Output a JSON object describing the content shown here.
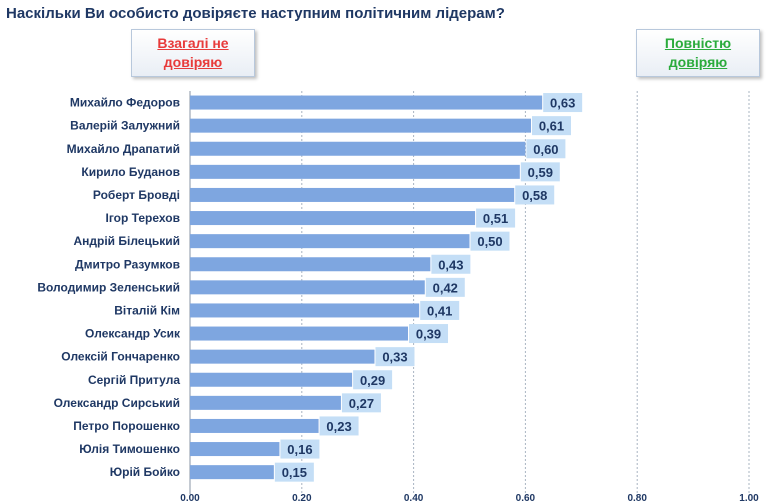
{
  "title": "Наскільки Ви особисто довіряєте наступним політичним лідерам?",
  "legend": {
    "left_label": "Взагалі не довіряю",
    "right_label": "Повністю довіряю",
    "left_color": "#e83b3b",
    "right_color": "#2bab3c"
  },
  "chart_data": {
    "type": "bar",
    "orientation": "horizontal",
    "title": "Наскільки Ви особисто довіряєте наступним політичним лідерам?",
    "categories": [
      "Михайло Федоров",
      "Валерій Залужний",
      "Михайло Драпатий",
      "Кирило Буданов",
      "Роберт Бровді",
      "Ігор Терехов",
      "Андрій Білецький",
      "Дмитро Разумков",
      "Володимир Зеленський",
      "Віталій Кім",
      "Олександр Усик",
      "Олексій Гончаренко",
      "Сергій Притула",
      "Олександр Сирський",
      "Петро Порошенко",
      "Юлія Тимошенко",
      "Юрій Бойко"
    ],
    "values": [
      0.63,
      0.61,
      0.6,
      0.59,
      0.58,
      0.51,
      0.5,
      0.43,
      0.42,
      0.41,
      0.39,
      0.33,
      0.29,
      0.27,
      0.23,
      0.16,
      0.15
    ],
    "value_labels": [
      "0,63",
      "0,61",
      "0,60",
      "0,59",
      "0,58",
      "0,51",
      "0,50",
      "0,43",
      "0,42",
      "0,41",
      "0,39",
      "0,33",
      "0,29",
      "0,27",
      "0,23",
      "0,16",
      "0,15"
    ],
    "xlim": [
      0,
      1
    ],
    "xticks": [
      "0.00",
      "0.20",
      "0.40",
      "0.60",
      "0.80",
      "1.00"
    ],
    "grid": true,
    "bar_color": "#7ea6e0",
    "label_bg_color": "#c4def6"
  }
}
